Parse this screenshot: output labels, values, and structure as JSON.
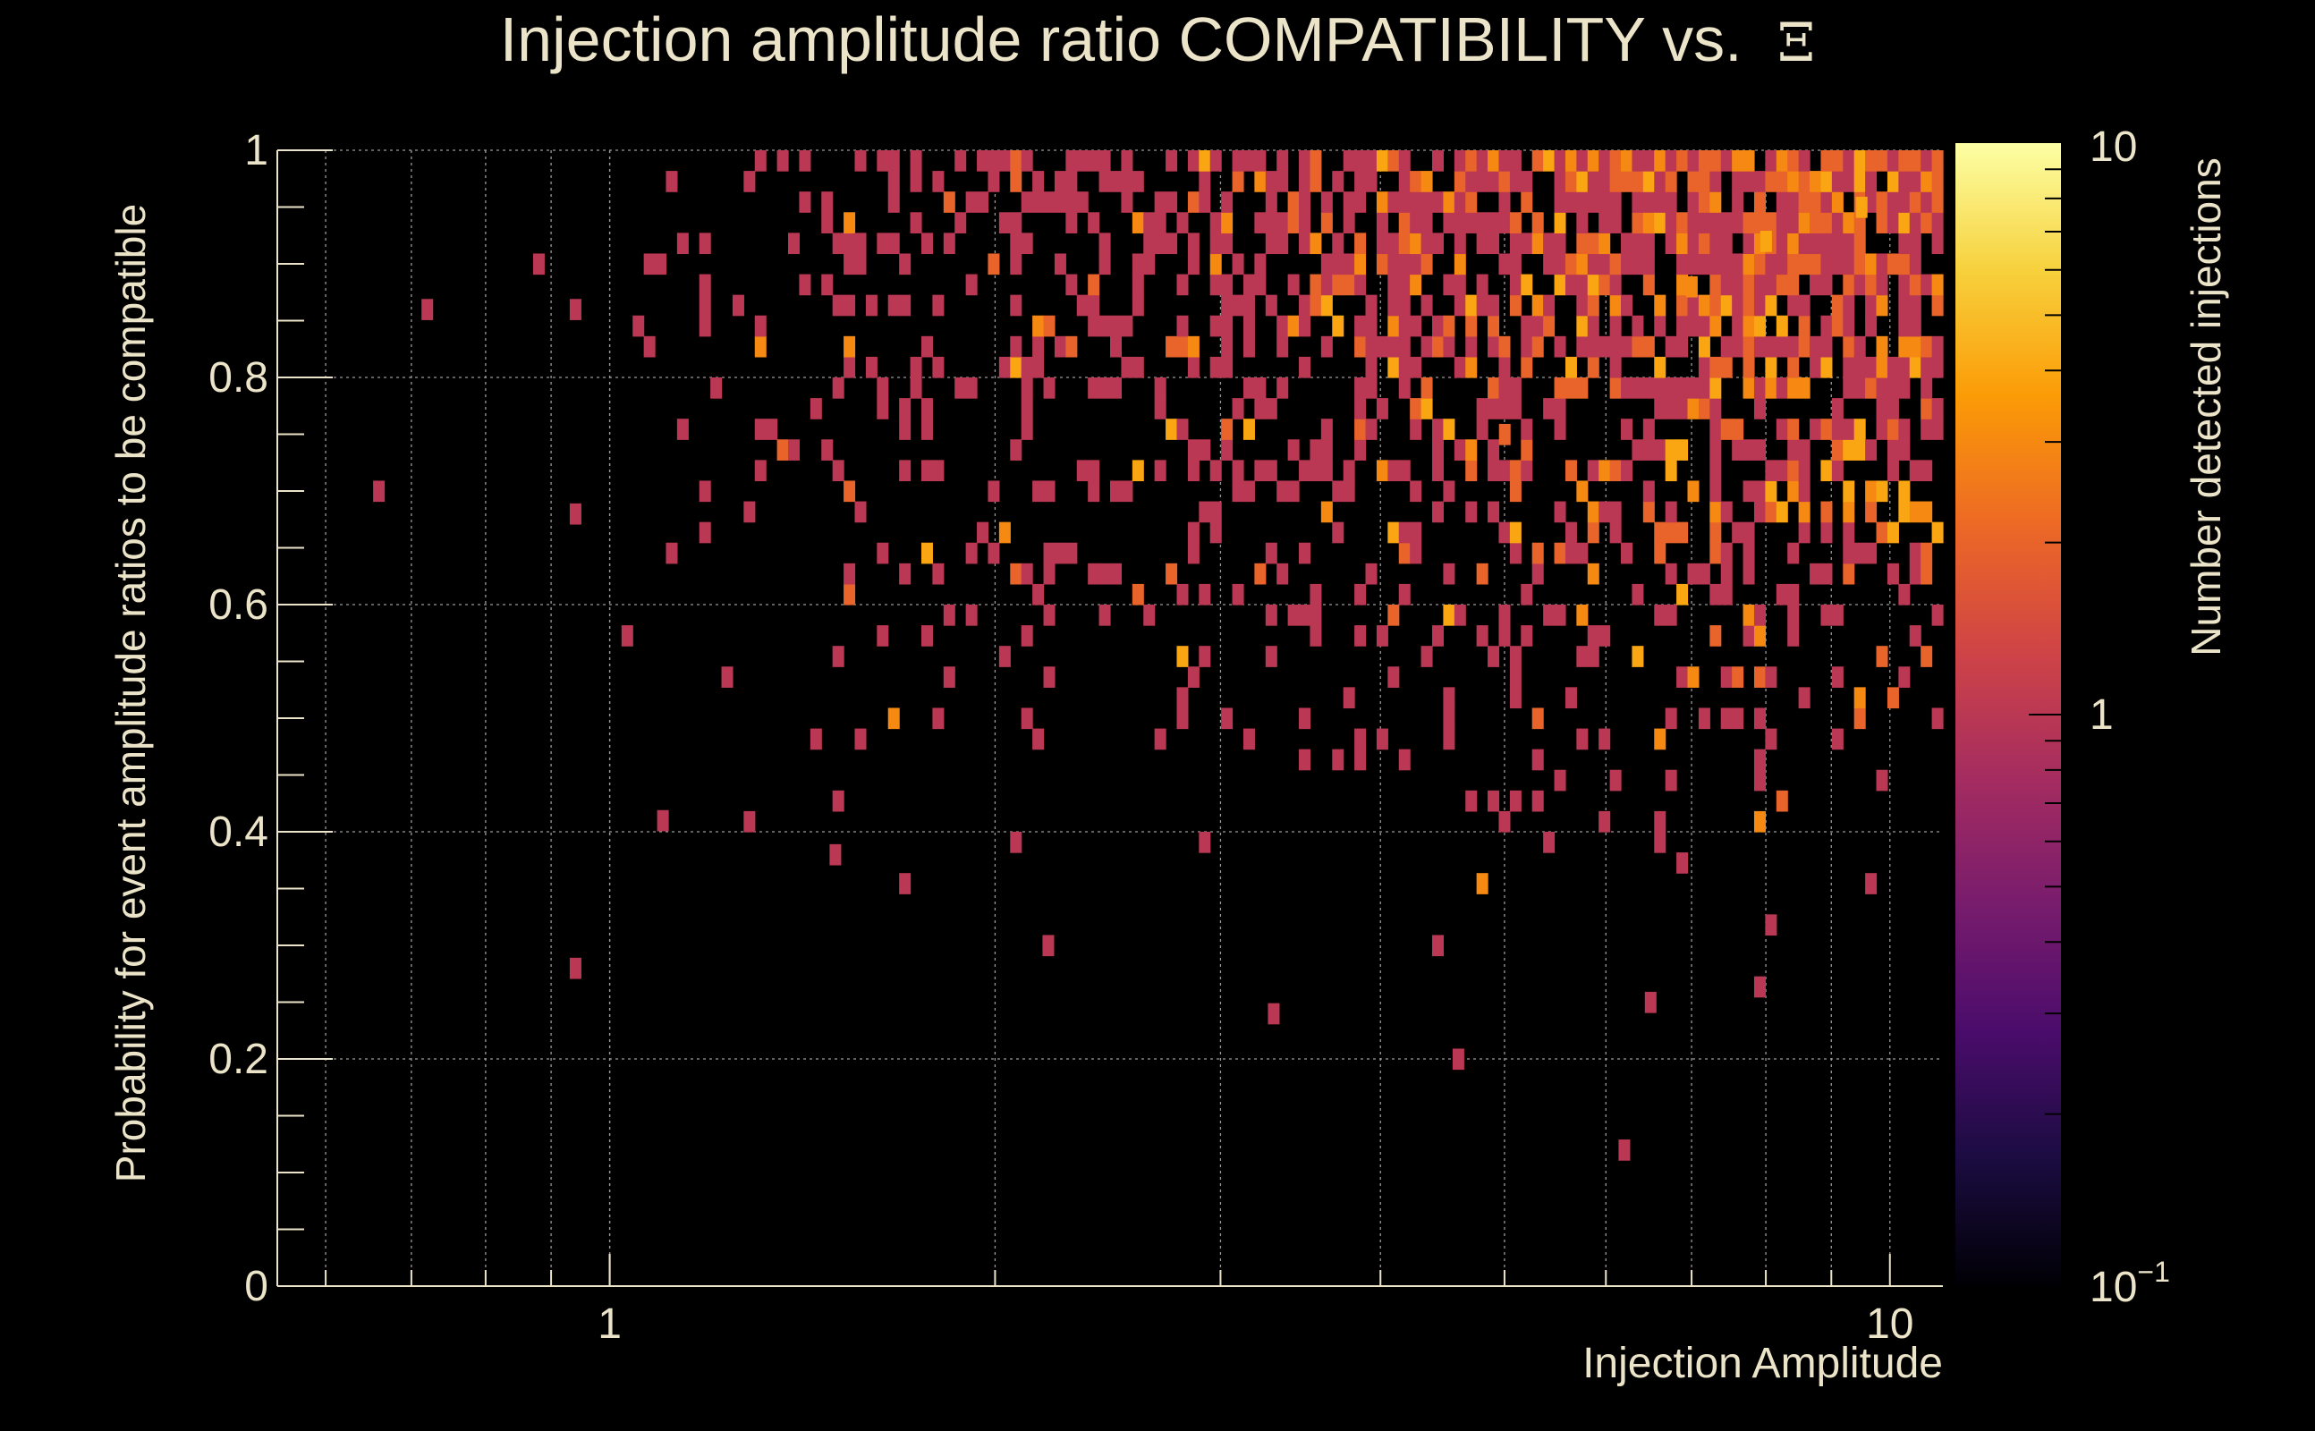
{
  "chart_data": {
    "type": "heatmap",
    "title": "Injection amplitude ratio COMPATIBILITY vs.",
    "title_symbol": "Ξ",
    "xlabel": "Injection Amplitude",
    "ylabel": "Probability for event amplitude ratios to be compatible",
    "zlabel": "Number detected injections",
    "x_scale": "log",
    "xlim": [
      0.55,
      11
    ],
    "x_tick_labels": [
      "1",
      "10"
    ],
    "ylim": [
      0,
      1
    ],
    "y_tick_labels": [
      "0",
      "0.2",
      "0.4",
      "0.6",
      "0.8",
      "1"
    ],
    "z_scale": "log",
    "zlim": [
      0.1,
      10
    ],
    "z_tick_labels": [
      "1",
      "10"
    ],
    "z_min_label": {
      "base": "10",
      "exp": "−1"
    },
    "grid": true,
    "colormap": [
      "#000004",
      "#1b0c41",
      "#4a0c6b",
      "#781c6d",
      "#a52c60",
      "#cf4446",
      "#ed6925",
      "#fb9b06",
      "#f7d13d",
      "#fcffa4"
    ],
    "description_of_distribution": "Counts concentrate at high amplitude and high compatibility probability; density decreases toward low amplitude and low probability.",
    "sample_bins": [
      {
        "x": 0.66,
        "y": 0.7,
        "count": 1
      },
      {
        "x": 0.72,
        "y": 0.86,
        "count": 1
      },
      {
        "x": 0.88,
        "y": 0.9,
        "count": 1
      },
      {
        "x": 0.94,
        "y": 0.28,
        "count": 1
      },
      {
        "x": 0.94,
        "y": 0.86,
        "count": 1
      },
      {
        "x": 0.94,
        "y": 0.68,
        "count": 1
      },
      {
        "x": 1.1,
        "y": 0.41,
        "count": 1
      },
      {
        "x": 1.5,
        "y": 0.38,
        "count": 1
      },
      {
        "x": 2.2,
        "y": 0.3,
        "count": 1
      },
      {
        "x": 3.3,
        "y": 0.24,
        "count": 1
      },
      {
        "x": 4.6,
        "y": 0.2,
        "count": 1
      },
      {
        "x": 6.2,
        "y": 0.12,
        "count": 1
      },
      {
        "x": 6.5,
        "y": 0.25,
        "count": 1
      },
      {
        "x": 8.0,
        "y": 0.92,
        "count": 4
      },
      {
        "x": 9.5,
        "y": 0.95,
        "count": 4
      },
      {
        "x": 7.0,
        "y": 0.88,
        "count": 3
      },
      {
        "x": 5.0,
        "y": 0.75,
        "count": 2
      }
    ]
  }
}
